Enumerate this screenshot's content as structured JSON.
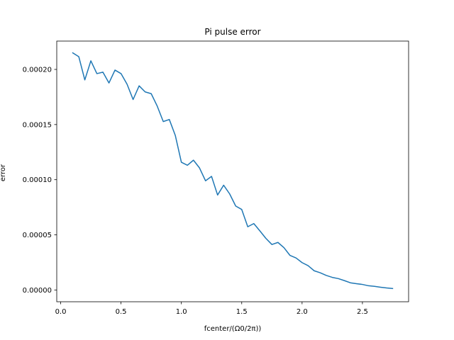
{
  "chart_data": {
    "type": "line",
    "title": "Pi pulse error",
    "xlabel": "fcenter/(Ω0/2π))",
    "ylabel": "error",
    "xlim": [
      -0.0325,
      2.8825
    ],
    "ylim": [
      -1.07e-05,
      0.0002257
    ],
    "xticks": [
      0.0,
      0.5,
      1.0,
      1.5,
      2.0,
      2.5
    ],
    "xtick_labels": [
      "0.0",
      "0.5",
      "1.0",
      "1.5",
      "2.0",
      "2.5"
    ],
    "yticks": [
      0.0,
      5e-05,
      0.0001,
      0.00015,
      0.0002
    ],
    "ytick_labels": [
      "0.00000",
      "0.00005",
      "0.00010",
      "0.00015",
      "0.00020"
    ],
    "grid": false,
    "series": [
      {
        "color": "#1f77b4",
        "x": [
          0.1,
          0.15,
          0.2,
          0.25,
          0.3,
          0.35,
          0.4,
          0.45,
          0.5,
          0.55,
          0.6,
          0.65,
          0.7,
          0.75,
          0.8,
          0.85,
          0.9,
          0.95,
          1.0,
          1.05,
          1.1,
          1.15,
          1.2,
          1.25,
          1.3,
          1.35,
          1.4,
          1.45,
          1.5,
          1.55,
          1.6,
          1.65,
          1.7,
          1.75,
          1.8,
          1.85,
          1.9,
          1.95,
          2.0,
          2.05,
          2.1,
          2.15,
          2.2,
          2.25,
          2.3,
          2.35,
          2.4,
          2.45,
          2.5,
          2.55,
          2.6,
          2.65,
          2.7,
          2.75
        ],
        "y": [
          0.000215,
          0.0002116,
          0.0001905,
          0.0002078,
          0.0001962,
          0.0001975,
          0.0001877,
          0.0001994,
          0.0001962,
          0.0001866,
          0.0001727,
          0.0001851,
          0.0001796,
          0.000178,
          0.0001667,
          0.0001527,
          0.0001546,
          0.00014,
          0.0001158,
          0.0001131,
          0.0001177,
          0.0001107,
          9.9e-05,
          0.000103,
          8.61e-05,
          9.5e-05,
          8.71e-05,
          7.61e-05,
          7.3e-05,
          5.73e-05,
          6.02e-05,
          5.36e-05,
          4.68e-05,
          4.12e-05,
          4.31e-05,
          3.83e-05,
          3.13e-05,
          2.9e-05,
          2.48e-05,
          2.2e-05,
          1.74e-05,
          1.56e-05,
          1.32e-05,
          1.14e-05,
          1.03e-05,
          8.5e-06,
          6.5e-06,
          5.7e-06,
          5e-06,
          3.8e-06,
          3.3e-06,
          2.5e-06,
          1.8e-06,
          1.3e-06
        ]
      }
    ]
  }
}
